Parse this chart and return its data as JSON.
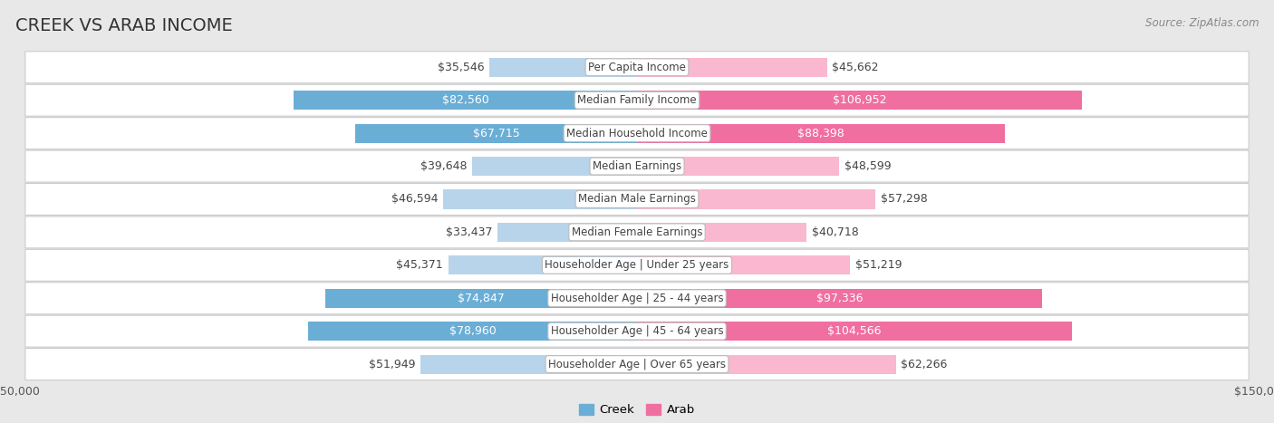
{
  "title": "CREEK VS ARAB INCOME",
  "source": "Source: ZipAtlas.com",
  "categories": [
    "Per Capita Income",
    "Median Family Income",
    "Median Household Income",
    "Median Earnings",
    "Median Male Earnings",
    "Median Female Earnings",
    "Householder Age | Under 25 years",
    "Householder Age | 25 - 44 years",
    "Householder Age | 45 - 64 years",
    "Householder Age | Over 65 years"
  ],
  "creek_values": [
    35546,
    82560,
    67715,
    39648,
    46594,
    33437,
    45371,
    74847,
    78960,
    51949
  ],
  "arab_values": [
    45662,
    106952,
    88398,
    48599,
    57298,
    40718,
    51219,
    97336,
    104566,
    62266
  ],
  "creek_labels": [
    "$35,546",
    "$82,560",
    "$67,715",
    "$39,648",
    "$46,594",
    "$33,437",
    "$45,371",
    "$74,847",
    "$78,960",
    "$51,949"
  ],
  "arab_labels": [
    "$45,662",
    "$106,952",
    "$88,398",
    "$48,599",
    "$57,298",
    "$40,718",
    "$51,219",
    "$97,336",
    "$104,566",
    "$62,266"
  ],
  "max_val": 150000,
  "creek_color_dark": "#6aaed6",
  "creek_color_light": "#b8d4ea",
  "arab_color_dark": "#f06fa0",
  "arab_color_light": "#f9b8d0",
  "bg_color": "#e8e8e8",
  "row_bg": "#ffffff",
  "title_fontsize": 14,
  "label_fontsize": 9,
  "category_fontsize": 8.5,
  "axis_label_fontsize": 9,
  "creek_label_white": [
    false,
    true,
    true,
    false,
    false,
    false,
    false,
    true,
    true,
    false
  ],
  "arab_label_white": [
    false,
    true,
    true,
    false,
    false,
    false,
    false,
    true,
    true,
    false
  ]
}
